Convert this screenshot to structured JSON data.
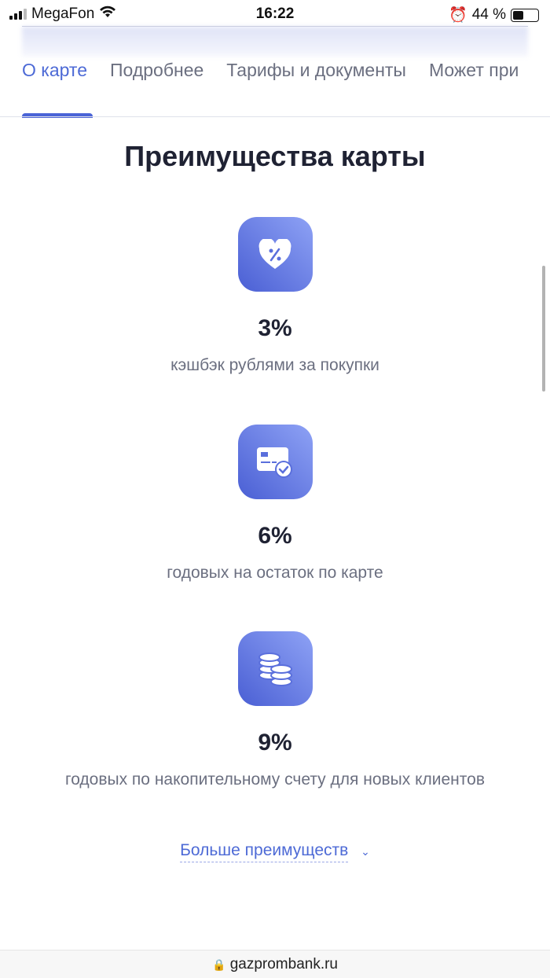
{
  "status": {
    "carrier": "MegaFon",
    "time": "16:22",
    "battery": "44 %",
    "battery_level": 0.44
  },
  "tabs": [
    {
      "label": "О карте",
      "active": true
    },
    {
      "label": "Подробнее"
    },
    {
      "label": "Тарифы и документы"
    },
    {
      "label": "Может при"
    }
  ],
  "title": "Преимущества карты",
  "benefits": [
    {
      "icon": "heart-percent-icon",
      "value": "3%",
      "desc": "кэшбэк рублями за покупки"
    },
    {
      "icon": "card-check-icon",
      "value": "6%",
      "desc": "годовых на остаток по карте"
    },
    {
      "icon": "coins-icon",
      "value": "9%",
      "desc": "годовых по накопительному счету для новых клиентов"
    }
  ],
  "more": {
    "label": "Больше преимуществ",
    "icon": "chevron-down-icon"
  },
  "browser": {
    "url": "gazprombank.ru"
  },
  "colors": {
    "accent": "#4d6ad6"
  }
}
